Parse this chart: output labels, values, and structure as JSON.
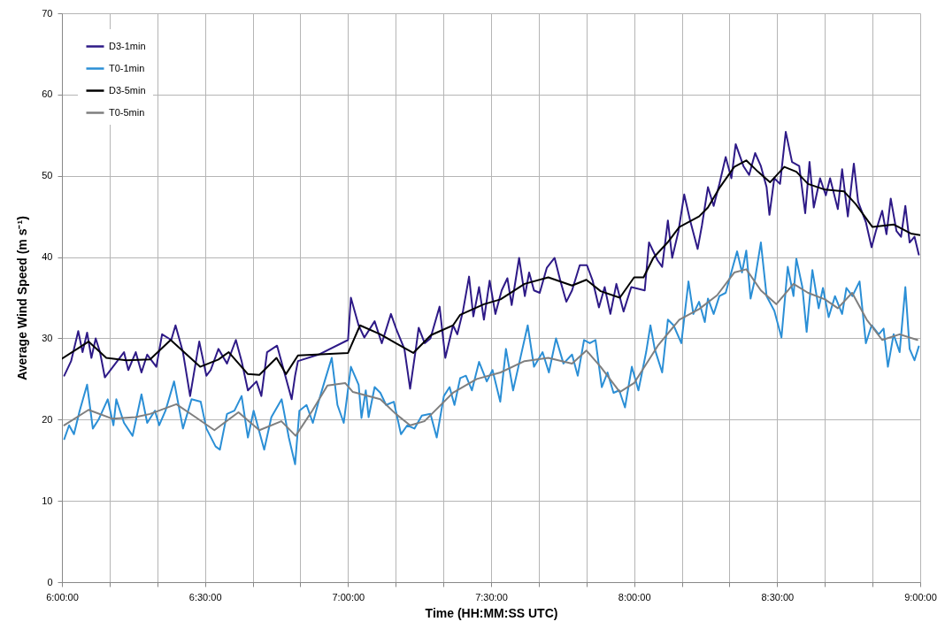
{
  "chart_data": {
    "type": "line",
    "xlabel": "Time (HH:MM:SS UTC)",
    "ylabel": "Average Wind Speed (m s⁻¹)",
    "xlim": [
      6,
      9
    ],
    "ylim": [
      0,
      70
    ],
    "xticks": [
      {
        "value": 6,
        "label": "6:00:00"
      },
      {
        "value": 6.167,
        "label": null
      },
      {
        "value": 6.333,
        "label": null
      },
      {
        "value": 6.5,
        "label": "6:30:00"
      },
      {
        "value": 6.667,
        "label": null
      },
      {
        "value": 6.833,
        "label": null
      },
      {
        "value": 7,
        "label": "7:00:00"
      },
      {
        "value": 7.167,
        "label": null
      },
      {
        "value": 7.333,
        "label": null
      },
      {
        "value": 7.5,
        "label": "7:30:00"
      },
      {
        "value": 7.667,
        "label": null
      },
      {
        "value": 7.833,
        "label": null
      },
      {
        "value": 8,
        "label": "8:00:00"
      },
      {
        "value": 8.167,
        "label": null
      },
      {
        "value": 8.333,
        "label": null
      },
      {
        "value": 8.5,
        "label": "8:30:00"
      },
      {
        "value": 8.667,
        "label": null
      },
      {
        "value": 8.833,
        "label": null
      },
      {
        "value": 9,
        "label": "9:00:00"
      }
    ],
    "yticks": [
      0,
      10,
      20,
      30,
      40,
      50,
      60,
      70
    ],
    "grid": true,
    "legend": "top left",
    "series": [
      {
        "name": "D3-1min",
        "color": "#2e1a87",
        "x": [
          6.008,
          6.032,
          6.057,
          6.072,
          6.088,
          6.103,
          6.118,
          6.133,
          6.15,
          6.217,
          6.232,
          6.258,
          6.278,
          6.298,
          6.33,
          6.35,
          6.382,
          6.397,
          6.423,
          6.448,
          6.48,
          6.505,
          6.52,
          6.547,
          6.577,
          6.608,
          6.628,
          6.65,
          6.68,
          6.697,
          6.717,
          6.752,
          6.783,
          6.803,
          6.815,
          6.825,
          6.897,
          7.0,
          7.01,
          7.037,
          7.057,
          7.093,
          7.118,
          7.15,
          7.17,
          7.197,
          7.217,
          7.237,
          7.247,
          7.268,
          7.288,
          7.32,
          7.34,
          7.367,
          7.382,
          7.402,
          7.423,
          7.438,
          7.458,
          7.475,
          7.495,
          7.515,
          7.537,
          7.557,
          7.572,
          7.598,
          7.618,
          7.633,
          7.65,
          7.67,
          7.695,
          7.722,
          7.742,
          7.763,
          7.783,
          7.81,
          7.835,
          7.855,
          7.877,
          7.897,
          7.917,
          7.938,
          7.963,
          7.99,
          8.037,
          8.052,
          8.082,
          8.098,
          8.118,
          8.133,
          8.155,
          8.175,
          8.195,
          8.222,
          8.237,
          8.258,
          8.278,
          8.298,
          8.32,
          8.34,
          8.355,
          8.382,
          8.402,
          8.423,
          8.443,
          8.463,
          8.473,
          8.49,
          8.51,
          8.53,
          8.552,
          8.577,
          8.598,
          8.613,
          8.628,
          8.65,
          8.67,
          8.685,
          8.712,
          8.727,
          8.747,
          8.768,
          8.783,
          8.81,
          8.83,
          8.845,
          8.867,
          8.882,
          8.897,
          8.917,
          8.933,
          8.948,
          8.963,
          8.98,
          8.995
        ],
        "values": [
          25.4,
          27.2,
          30.9,
          28.3,
          30.7,
          27.6,
          30.0,
          28.3,
          25.2,
          28.3,
          26.1,
          28.3,
          25.8,
          28.0,
          26.5,
          30.5,
          29.8,
          31.6,
          28.3,
          22.9,
          29.6,
          25.4,
          26.1,
          28.7,
          26.9,
          29.8,
          27.2,
          23.6,
          24.7,
          22.9,
          28.3,
          29.1,
          25.1,
          22.5,
          25.4,
          27.2,
          28.0,
          29.8,
          35.0,
          31.6,
          30.1,
          32.1,
          29.4,
          33.0,
          31.0,
          28.7,
          23.8,
          28.7,
          31.3,
          29.4,
          30.0,
          33.9,
          27.6,
          31.6,
          30.5,
          33.4,
          37.6,
          32.7,
          36.3,
          32.3,
          37.1,
          33.0,
          35.9,
          37.4,
          34.1,
          39.9,
          35.2,
          38.1,
          35.9,
          35.6,
          38.7,
          39.9,
          37.1,
          34.5,
          35.9,
          39.0,
          39.0,
          37.1,
          33.8,
          36.3,
          33.0,
          36.7,
          33.3,
          36.3,
          35.9,
          41.8,
          39.6,
          38.8,
          44.5,
          39.9,
          43.2,
          47.7,
          44.6,
          41.0,
          43.9,
          48.6,
          46.3,
          49.0,
          52.3,
          49.7,
          53.9,
          51.2,
          50.1,
          52.8,
          51.2,
          48.6,
          45.2,
          49.7,
          49.0,
          55.4,
          51.7,
          51.2,
          45.4,
          51.7,
          46.1,
          49.7,
          47.6,
          49.7,
          45.9,
          50.8,
          45.0,
          51.5,
          46.8,
          44.3,
          41.2,
          43.2,
          45.7,
          42.8,
          47.2,
          43.2,
          42.5,
          46.3,
          41.8,
          42.5,
          40.3
        ]
      },
      {
        "name": "T0-1min",
        "color": "#2b8fd6",
        "x": [
          6.008,
          6.025,
          6.042,
          6.062,
          6.088,
          6.108,
          6.128,
          6.16,
          6.18,
          6.19,
          6.217,
          6.247,
          6.278,
          6.298,
          6.325,
          6.34,
          6.362,
          6.392,
          6.423,
          6.453,
          6.485,
          6.505,
          6.537,
          6.552,
          6.577,
          6.603,
          6.628,
          6.65,
          6.67,
          6.707,
          6.732,
          6.768,
          6.793,
          6.815,
          6.83,
          6.855,
          6.877,
          6.897,
          6.918,
          6.943,
          6.963,
          6.985,
          7.01,
          7.037,
          7.047,
          7.062,
          7.072,
          7.093,
          7.113,
          7.133,
          7.16,
          7.185,
          7.207,
          7.232,
          7.258,
          7.288,
          7.31,
          7.335,
          7.355,
          7.372,
          7.392,
          7.412,
          7.433,
          7.458,
          7.485,
          7.505,
          7.532,
          7.552,
          7.577,
          7.598,
          7.628,
          7.65,
          7.68,
          7.702,
          7.727,
          7.753,
          7.783,
          7.803,
          7.825,
          7.845,
          7.865,
          7.887,
          7.907,
          7.928,
          7.948,
          7.968,
          7.992,
          8.015,
          8.042,
          8.057,
          8.072,
          8.098,
          8.118,
          8.138,
          8.165,
          8.19,
          8.207,
          8.227,
          8.247,
          8.258,
          8.278,
          8.298,
          8.32,
          8.345,
          8.36,
          8.377,
          8.392,
          8.407,
          8.423,
          8.443,
          8.463,
          8.49,
          8.515,
          8.537,
          8.557,
          8.567,
          8.588,
          8.603,
          8.623,
          8.645,
          8.66,
          8.68,
          8.702,
          8.727,
          8.742,
          8.763,
          8.788,
          8.81,
          8.83,
          8.855,
          8.872,
          8.887,
          8.907,
          8.928,
          8.948,
          8.963,
          8.98,
          8.995
        ],
        "values": [
          17.6,
          19.3,
          18.2,
          21.1,
          24.3,
          18.9,
          20.0,
          22.5,
          19.3,
          22.5,
          19.6,
          18.0,
          23.1,
          19.6,
          21.1,
          19.3,
          21.1,
          24.7,
          18.9,
          22.5,
          22.2,
          18.9,
          16.7,
          16.3,
          20.7,
          21.1,
          22.9,
          17.8,
          21.1,
          16.3,
          20.3,
          22.5,
          17.8,
          14.5,
          21.1,
          21.8,
          19.6,
          22.2,
          24.7,
          27.6,
          21.8,
          19.6,
          26.5,
          24.3,
          20.2,
          23.6,
          20.3,
          24.0,
          23.3,
          21.8,
          22.2,
          18.2,
          19.3,
          18.9,
          20.5,
          20.7,
          17.8,
          22.9,
          24.0,
          21.8,
          25.1,
          25.4,
          23.6,
          27.1,
          24.7,
          26.1,
          22.2,
          28.7,
          23.6,
          26.9,
          31.6,
          26.5,
          28.3,
          25.8,
          30.0,
          26.9,
          28.0,
          25.4,
          29.8,
          29.4,
          29.8,
          24.0,
          25.8,
          23.3,
          23.6,
          21.5,
          26.5,
          23.6,
          28.3,
          31.6,
          28.7,
          25.8,
          32.3,
          31.6,
          29.4,
          37.0,
          33.0,
          34.5,
          32.0,
          34.9,
          33.0,
          35.2,
          35.6,
          38.8,
          40.7,
          38.1,
          40.8,
          34.9,
          37.4,
          41.8,
          35.2,
          33.4,
          30.1,
          38.8,
          35.2,
          39.8,
          36.3,
          30.8,
          38.4,
          33.7,
          36.2,
          32.6,
          35.2,
          33.0,
          36.2,
          35.2,
          37.0,
          29.4,
          31.6,
          30.5,
          31.2,
          26.5,
          30.5,
          28.3,
          36.3,
          28.7,
          27.3,
          29.0
        ]
      },
      {
        "name": "D3-5min",
        "color": "#000000",
        "x": [
          6.0,
          6.093,
          6.155,
          6.225,
          6.308,
          6.38,
          6.483,
          6.547,
          6.583,
          6.65,
          6.69,
          6.75,
          6.783,
          6.825,
          7.0,
          7.042,
          7.113,
          7.167,
          7.228,
          7.29,
          7.367,
          7.392,
          7.475,
          7.533,
          7.617,
          7.7,
          7.783,
          7.833,
          7.883,
          7.95,
          8.0,
          8.033,
          8.067,
          8.117,
          8.158,
          8.227,
          8.258,
          8.3,
          8.35,
          8.392,
          8.433,
          8.475,
          8.525,
          8.567,
          8.608,
          8.667,
          8.733,
          8.775,
          8.833,
          8.908,
          8.967,
          9.0
        ],
        "values": [
          27.5,
          29.6,
          27.6,
          27.3,
          27.4,
          29.8,
          26.5,
          27.4,
          28.3,
          25.6,
          25.5,
          27.6,
          25.6,
          27.9,
          28.2,
          31.6,
          30.5,
          29.4,
          28.2,
          30.4,
          31.6,
          32.9,
          34.2,
          34.8,
          36.7,
          37.5,
          36.5,
          37.2,
          35.8,
          35.0,
          37.5,
          37.5,
          39.9,
          41.8,
          43.7,
          45.0,
          46.1,
          48.6,
          51.1,
          51.9,
          50.5,
          49.2,
          51.1,
          50.5,
          49.0,
          48.3,
          48.1,
          46.5,
          43.7,
          44.0,
          42.9,
          42.7
        ]
      },
      {
        "name": "T0-5min",
        "color": "#7f7f7f",
        "x": [
          6.008,
          6.093,
          6.177,
          6.257,
          6.308,
          6.4,
          6.467,
          6.533,
          6.617,
          6.69,
          6.767,
          6.817,
          6.875,
          6.928,
          6.99,
          7.017,
          7.113,
          7.167,
          7.217,
          7.267,
          7.367,
          7.45,
          7.533,
          7.617,
          7.7,
          7.783,
          7.833,
          7.883,
          7.95,
          8.0,
          8.083,
          8.158,
          8.227,
          8.29,
          8.35,
          8.392,
          8.443,
          8.497,
          8.557,
          8.608,
          8.667,
          8.712,
          8.762,
          8.813,
          8.867,
          8.928,
          8.99
        ],
        "values": [
          19.3,
          21.2,
          20.1,
          20.3,
          20.7,
          21.9,
          20.3,
          18.7,
          20.9,
          18.7,
          19.8,
          18.0,
          21.1,
          24.2,
          24.5,
          23.4,
          22.5,
          20.7,
          19.3,
          19.8,
          23.3,
          25.0,
          25.8,
          27.2,
          27.6,
          26.9,
          28.5,
          26.5,
          23.4,
          24.5,
          29.1,
          32.3,
          33.6,
          35.3,
          38.1,
          38.5,
          35.9,
          34.2,
          36.7,
          35.6,
          34.8,
          33.7,
          35.6,
          32.3,
          29.8,
          30.5,
          29.8
        ]
      }
    ]
  }
}
